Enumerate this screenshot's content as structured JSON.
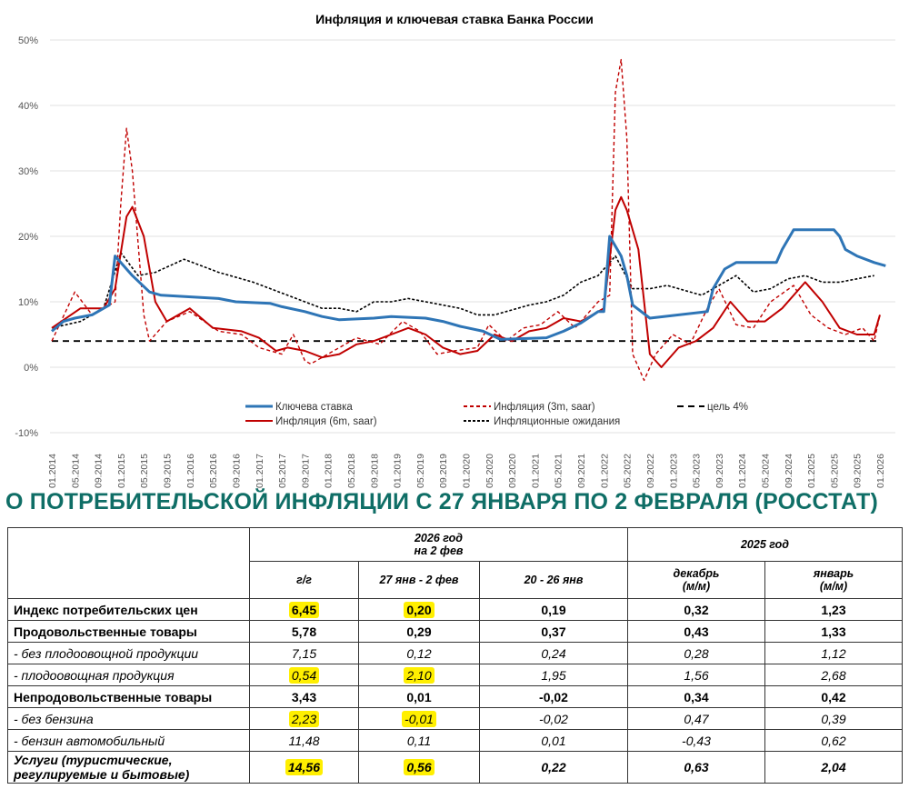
{
  "chart_data": {
    "type": "line",
    "title": "Инфляция и ключевая ставка Банка России",
    "xlabel": "",
    "ylabel": "",
    "ylim": [
      -10,
      50
    ],
    "yticks": [
      "-10%",
      "0%",
      "10%",
      "20%",
      "30%",
      "40%",
      "50%"
    ],
    "yticks_values": [
      -10,
      0,
      10,
      20,
      30,
      40,
      50
    ],
    "xlim": [
      "2014-01",
      "2026-01"
    ],
    "xticks": [
      "01.2014",
      "05.2014",
      "09.2014",
      "01.2015",
      "05.2015",
      "09.2015",
      "01.2016",
      "05.2016",
      "09.2016",
      "01.2017",
      "05.2017",
      "09.2017",
      "01.2018",
      "05.2018",
      "09.2018",
      "01.2019",
      "05.2019",
      "09.2019",
      "01.2020",
      "05.2020",
      "09.2020",
      "01.2021",
      "05.2021",
      "09.2021",
      "01.2022",
      "05.2022",
      "09.2022",
      "01.2023",
      "05.2023",
      "09.2023",
      "01.2024",
      "05.2024",
      "09.2024",
      "01.2025",
      "05.2025",
      "09.2025",
      "01.2026"
    ],
    "grid": "horizontal",
    "legend_placement": "bottom",
    "series": [
      {
        "name": "Ключева ставка",
        "color": "#2e75b6",
        "style": "solid",
        "points": [
          [
            "2014-01",
            5.5
          ],
          [
            "2014-03",
            7
          ],
          [
            "2014-05",
            7.5
          ],
          [
            "2014-08",
            8
          ],
          [
            "2014-11",
            9.5
          ],
          [
            "2014-12",
            17
          ],
          [
            "2015-02",
            15
          ],
          [
            "2015-03",
            14
          ],
          [
            "2015-06",
            11.5
          ],
          [
            "2015-08",
            11
          ],
          [
            "2016-06",
            10.5
          ],
          [
            "2016-09",
            10
          ],
          [
            "2017-03",
            9.75
          ],
          [
            "2017-05",
            9.25
          ],
          [
            "2017-09",
            8.5
          ],
          [
            "2017-12",
            7.75
          ],
          [
            "2018-03",
            7.25
          ],
          [
            "2018-09",
            7.5
          ],
          [
            "2018-12",
            7.75
          ],
          [
            "2019-06",
            7.5
          ],
          [
            "2019-09",
            7
          ],
          [
            "2019-12",
            6.25
          ],
          [
            "2020-04",
            5.5
          ],
          [
            "2020-07",
            4.25
          ],
          [
            "2021-03",
            4.5
          ],
          [
            "2021-06",
            5.5
          ],
          [
            "2021-09",
            6.75
          ],
          [
            "2021-12",
            8.5
          ],
          [
            "2022-01",
            8.5
          ],
          [
            "2022-02",
            20
          ],
          [
            "2022-04",
            17
          ],
          [
            "2022-05",
            14
          ],
          [
            "2022-06",
            9.5
          ],
          [
            "2022-09",
            7.5
          ],
          [
            "2023-07",
            8.5
          ],
          [
            "2023-08",
            12
          ],
          [
            "2023-10",
            15
          ],
          [
            "2023-12",
            16
          ],
          [
            "2024-07",
            16
          ],
          [
            "2024-08",
            18
          ],
          [
            "2024-10",
            21
          ],
          [
            "2025-05",
            21
          ],
          [
            "2025-06",
            20
          ],
          [
            "2025-07",
            18
          ],
          [
            "2025-09",
            17
          ],
          [
            "2025-12",
            16
          ],
          [
            "2026-02",
            15.5
          ]
        ]
      },
      {
        "name": "Инфляция (6m, saar)",
        "color": "#c00000",
        "style": "solid",
        "points": [
          [
            "2014-01",
            6
          ],
          [
            "2014-06",
            9
          ],
          [
            "2014-10",
            9
          ],
          [
            "2014-12",
            12
          ],
          [
            "2015-02",
            23
          ],
          [
            "2015-03",
            24.5
          ],
          [
            "2015-05",
            20
          ],
          [
            "2015-07",
            10
          ],
          [
            "2015-09",
            7
          ],
          [
            "2016-01",
            9
          ],
          [
            "2016-05",
            6
          ],
          [
            "2016-10",
            5.5
          ],
          [
            "2017-01",
            4.5
          ],
          [
            "2017-04",
            2.5
          ],
          [
            "2017-06",
            3
          ],
          [
            "2017-09",
            2.5
          ],
          [
            "2017-12",
            1.5
          ],
          [
            "2018-03",
            2
          ],
          [
            "2018-06",
            3.5
          ],
          [
            "2018-09",
            4
          ],
          [
            "2018-12",
            5
          ],
          [
            "2019-03",
            6
          ],
          [
            "2019-06",
            5
          ],
          [
            "2019-09",
            3
          ],
          [
            "2019-12",
            2
          ],
          [
            "2020-03",
            2.5
          ],
          [
            "2020-06",
            5
          ],
          [
            "2020-09",
            4
          ],
          [
            "2020-12",
            5.5
          ],
          [
            "2021-03",
            6
          ],
          [
            "2021-06",
            7.5
          ],
          [
            "2021-09",
            7
          ],
          [
            "2021-12",
            8.5
          ],
          [
            "2022-01",
            9
          ],
          [
            "2022-03",
            24
          ],
          [
            "2022-04",
            26
          ],
          [
            "2022-05",
            24
          ],
          [
            "2022-07",
            18
          ],
          [
            "2022-09",
            2
          ],
          [
            "2022-11",
            0
          ],
          [
            "2023-02",
            3
          ],
          [
            "2023-05",
            4
          ],
          [
            "2023-08",
            6
          ],
          [
            "2023-11",
            10
          ],
          [
            "2024-02",
            7
          ],
          [
            "2024-05",
            7
          ],
          [
            "2024-08",
            9
          ],
          [
            "2024-12",
            13
          ],
          [
            "2025-03",
            10
          ],
          [
            "2025-06",
            6
          ],
          [
            "2025-09",
            5
          ],
          [
            "2025-12",
            5
          ],
          [
            "2026-01",
            8
          ]
        ]
      },
      {
        "name": "Инфляция (3m, saar)",
        "color": "#c00000",
        "style": "dashed",
        "points": [
          [
            "2014-01",
            4
          ],
          [
            "2014-05",
            11.5
          ],
          [
            "2014-08",
            8
          ],
          [
            "2014-12",
            10
          ],
          [
            "2015-01",
            25
          ],
          [
            "2015-02",
            36.5
          ],
          [
            "2015-03",
            30
          ],
          [
            "2015-05",
            8
          ],
          [
            "2015-06",
            4
          ],
          [
            "2015-09",
            7
          ],
          [
            "2016-01",
            8.5
          ],
          [
            "2016-06",
            5.5
          ],
          [
            "2016-10",
            5
          ],
          [
            "2017-01",
            3
          ],
          [
            "2017-05",
            2
          ],
          [
            "2017-07",
            5
          ],
          [
            "2017-09",
            1
          ],
          [
            "2017-10",
            0.5
          ],
          [
            "2018-01",
            2
          ],
          [
            "2018-06",
            4.5
          ],
          [
            "2018-10",
            3.5
          ],
          [
            "2019-02",
            7
          ],
          [
            "2019-05",
            5.5
          ],
          [
            "2019-08",
            2
          ],
          [
            "2019-11",
            2.5
          ],
          [
            "2020-03",
            3
          ],
          [
            "2020-05",
            6.5
          ],
          [
            "2020-08",
            4
          ],
          [
            "2020-11",
            6
          ],
          [
            "2021-02",
            6.5
          ],
          [
            "2021-05",
            8.5
          ],
          [
            "2021-08",
            6
          ],
          [
            "2021-12",
            10
          ],
          [
            "2022-02",
            11
          ],
          [
            "2022-03",
            42
          ],
          [
            "2022-04",
            47
          ],
          [
            "2022-05",
            35
          ],
          [
            "2022-06",
            2
          ],
          [
            "2022-08",
            -2
          ],
          [
            "2022-10",
            2
          ],
          [
            "2023-01",
            5
          ],
          [
            "2023-04",
            3.5
          ],
          [
            "2023-07",
            9
          ],
          [
            "2023-09",
            12
          ],
          [
            "2023-12",
            6.5
          ],
          [
            "2024-03",
            6
          ],
          [
            "2024-06",
            10
          ],
          [
            "2024-10",
            12.5
          ],
          [
            "2025-01",
            8
          ],
          [
            "2025-04",
            6
          ],
          [
            "2025-07",
            5
          ],
          [
            "2025-10",
            6
          ],
          [
            "2025-12",
            4
          ],
          [
            "2026-01",
            8
          ]
        ]
      },
      {
        "name": "Инфляционные ожидания",
        "color": "#000000",
        "style": "dotted",
        "points": [
          [
            "2014-01",
            6
          ],
          [
            "2014-06",
            7
          ],
          [
            "2014-10",
            9
          ],
          [
            "2015-01",
            17.5
          ],
          [
            "2015-04",
            14
          ],
          [
            "2015-07",
            14.5
          ],
          [
            "2015-12",
            16.5
          ],
          [
            "2016-06",
            14.5
          ],
          [
            "2016-12",
            13
          ],
          [
            "2017-06",
            11
          ],
          [
            "2017-12",
            9
          ],
          [
            "2018-03",
            9
          ],
          [
            "2018-06",
            8.5
          ],
          [
            "2018-09",
            10
          ],
          [
            "2018-12",
            10
          ],
          [
            "2019-03",
            10.5
          ],
          [
            "2019-09",
            9.5
          ],
          [
            "2019-12",
            9
          ],
          [
            "2020-03",
            8
          ],
          [
            "2020-06",
            8
          ],
          [
            "2020-12",
            9.5
          ],
          [
            "2021-03",
            10
          ],
          [
            "2021-06",
            11
          ],
          [
            "2021-09",
            13
          ],
          [
            "2021-12",
            14
          ],
          [
            "2022-03",
            17
          ],
          [
            "2022-06",
            12
          ],
          [
            "2022-09",
            12
          ],
          [
            "2022-12",
            12.5
          ],
          [
            "2023-06",
            11
          ],
          [
            "2023-09",
            12.5
          ],
          [
            "2023-12",
            14
          ],
          [
            "2024-03",
            11.5
          ],
          [
            "2024-06",
            12
          ],
          [
            "2024-09",
            13.5
          ],
          [
            "2024-12",
            14
          ],
          [
            "2025-03",
            13
          ],
          [
            "2025-06",
            13
          ],
          [
            "2025-09",
            13.5
          ],
          [
            "2025-12",
            14
          ]
        ]
      },
      {
        "name": "цель 4%",
        "color": "#000000",
        "style": "dashed-bold",
        "points": [
          [
            "2014-01",
            4
          ],
          [
            "2026-01",
            4
          ]
        ]
      }
    ]
  },
  "table": {
    "heading": "О ПОТРЕБИТЕЛЬСКОЙ ИНФЛЯЦИИ С 27 ЯНВАРЯ ПО 2 ФЕВРАЛЯ (РОССТАТ)",
    "group1": "2026 год\nна 2 фев",
    "group2": "2025 год",
    "columns": [
      "г/г",
      "27 янв - 2 фев",
      "20 - 26 янв",
      "декабрь\n(м/м)",
      "январь\n(м/м)"
    ],
    "highlight_color": "#ffef00",
    "rows": [
      {
        "label": "Индекс потребительских цен",
        "style": "bold",
        "values": [
          "6,45",
          "0,20",
          "0,19",
          "0,32",
          "1,23"
        ],
        "highlight": [
          true,
          true,
          false,
          false,
          false
        ]
      },
      {
        "label": "Продовольственные товары",
        "style": "bold",
        "values": [
          "5,78",
          "0,29",
          "0,37",
          "0,43",
          "1,33"
        ],
        "highlight": [
          false,
          false,
          false,
          false,
          false
        ]
      },
      {
        "label": "- без плодоовощной продукции",
        "style": "italic",
        "values": [
          "7,15",
          "0,12",
          "0,24",
          "0,28",
          "1,12"
        ],
        "highlight": [
          false,
          false,
          false,
          false,
          false
        ]
      },
      {
        "label": "- плодоовощная продукция",
        "style": "italic",
        "values": [
          "0,54",
          "2,10",
          "1,95",
          "1,56",
          "2,68"
        ],
        "highlight": [
          true,
          true,
          false,
          false,
          false
        ]
      },
      {
        "label": "Непродовольственные товары",
        "style": "bold",
        "values": [
          "3,43",
          "0,01",
          "-0,02",
          "0,34",
          "0,42"
        ],
        "highlight": [
          false,
          false,
          false,
          false,
          false
        ]
      },
      {
        "label": "- без бензина",
        "style": "italic",
        "values": [
          "2,23",
          "-0,01",
          "-0,02",
          "0,47",
          "0,39"
        ],
        "highlight": [
          true,
          true,
          false,
          false,
          false
        ]
      },
      {
        "label": "- бензин автомобильный",
        "style": "italic",
        "values": [
          "11,48",
          "0,11",
          "0,01",
          "-0,43",
          "0,62"
        ],
        "highlight": [
          false,
          false,
          false,
          false,
          false
        ]
      },
      {
        "label": "Услуги (туристические,\nрегулируемые и бытовые)",
        "style": "bolditalic",
        "values": [
          "14,56",
          "0,56",
          "0,22",
          "0,63",
          "2,04"
        ],
        "highlight": [
          true,
          true,
          false,
          false,
          false
        ]
      }
    ]
  }
}
